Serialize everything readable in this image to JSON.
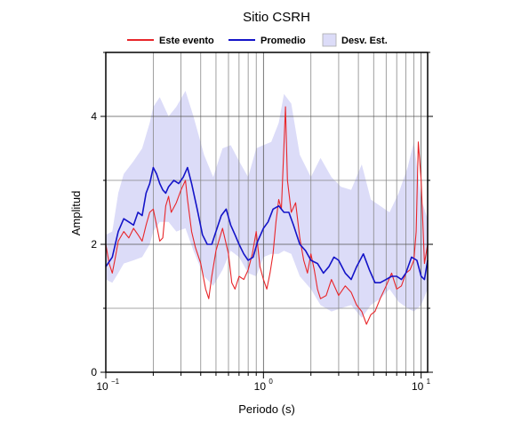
{
  "chart_data": {
    "type": "line",
    "title": "Sitio CSRH",
    "xlabel": "Periodo (s)",
    "ylabel": "Amplitud",
    "x_scale": "log",
    "xlim": [
      0.1,
      11
    ],
    "ylim": [
      0,
      5
    ],
    "x_ticks": [
      {
        "value": 0.1,
        "base": "10",
        "exp": "−1"
      },
      {
        "value": 1,
        "base": "10",
        "exp": "0"
      },
      {
        "value": 10,
        "base": "10",
        "exp": "1"
      }
    ],
    "y_ticks": [
      0,
      2,
      4
    ],
    "grid": true,
    "legend": {
      "position": "top",
      "items": [
        {
          "label": "Este evento",
          "kind": "line",
          "color": "#e8262a"
        },
        {
          "label": "Promedio",
          "kind": "line",
          "color": "#1414c8"
        },
        {
          "label": "Desv. Est.",
          "kind": "band",
          "color": "#dcdcf8"
        }
      ]
    },
    "band": {
      "name": "Desv. Est.",
      "color": "#dcdcf8",
      "x": [
        0.1,
        0.11,
        0.12,
        0.13,
        0.15,
        0.17,
        0.19,
        0.2,
        0.22,
        0.25,
        0.28,
        0.32,
        0.36,
        0.42,
        0.48,
        0.55,
        0.62,
        0.7,
        0.8,
        0.9,
        1.0,
        1.12,
        1.25,
        1.35,
        1.5,
        1.7,
        2.0,
        2.3,
        2.7,
        3.1,
        3.6,
        4.2,
        4.8,
        5.5,
        6.3,
        7.2,
        8.2,
        9.0,
        10.0,
        11.0
      ],
      "upper": [
        2.15,
        2.2,
        2.8,
        3.1,
        3.3,
        3.5,
        3.9,
        4.15,
        4.3,
        4.0,
        4.15,
        4.4,
        4.0,
        3.4,
        3.05,
        3.5,
        3.55,
        3.3,
        3.05,
        3.5,
        3.55,
        3.6,
        3.9,
        4.35,
        4.2,
        3.4,
        3.05,
        3.35,
        3.05,
        2.9,
        2.85,
        3.25,
        2.7,
        2.6,
        2.5,
        2.8,
        3.2,
        3.6,
        2.7,
        2.4
      ],
      "lower": [
        1.45,
        1.4,
        1.55,
        1.7,
        1.75,
        1.8,
        2.0,
        2.2,
        2.35,
        2.35,
        2.2,
        2.25,
        1.9,
        1.5,
        1.35,
        1.6,
        1.9,
        1.8,
        1.55,
        1.5,
        1.8,
        1.85,
        1.85,
        1.9,
        1.85,
        1.5,
        1.3,
        1.05,
        0.95,
        1.0,
        1.05,
        0.85,
        1.05,
        1.15,
        1.3,
        1.1,
        1.0,
        0.95,
        1.05,
        1.3
      ]
    },
    "series": [
      {
        "name": "Este evento",
        "color": "#e8262a",
        "x": [
          0.1,
          0.105,
          0.11,
          0.115,
          0.12,
          0.13,
          0.14,
          0.15,
          0.16,
          0.17,
          0.18,
          0.19,
          0.2,
          0.21,
          0.22,
          0.23,
          0.24,
          0.25,
          0.26,
          0.28,
          0.3,
          0.32,
          0.33,
          0.35,
          0.37,
          0.4,
          0.43,
          0.45,
          0.47,
          0.5,
          0.55,
          0.6,
          0.63,
          0.66,
          0.7,
          0.75,
          0.8,
          0.85,
          0.9,
          0.95,
          1.0,
          1.05,
          1.1,
          1.15,
          1.2,
          1.25,
          1.3,
          1.35,
          1.38,
          1.42,
          1.5,
          1.6,
          1.7,
          1.8,
          1.9,
          2.0,
          2.1,
          2.2,
          2.3,
          2.5,
          2.7,
          3.0,
          3.3,
          3.6,
          3.9,
          4.2,
          4.5,
          4.8,
          5.1,
          5.5,
          6.0,
          6.5,
          7.0,
          7.5,
          8.0,
          8.5,
          9.0,
          9.3,
          9.6,
          10.0,
          10.5,
          11.0
        ],
        "values": [
          2.0,
          1.7,
          1.55,
          1.8,
          2.05,
          2.2,
          2.1,
          2.25,
          2.15,
          2.05,
          2.3,
          2.5,
          2.55,
          2.3,
          2.05,
          2.1,
          2.6,
          2.75,
          2.5,
          2.65,
          2.85,
          3.0,
          2.7,
          2.2,
          1.95,
          1.7,
          1.3,
          1.15,
          1.5,
          1.9,
          2.25,
          1.85,
          1.4,
          1.3,
          1.5,
          1.45,
          1.6,
          1.85,
          2.2,
          1.65,
          1.45,
          1.3,
          1.55,
          1.85,
          2.35,
          2.7,
          2.55,
          3.55,
          4.15,
          3.0,
          2.5,
          2.65,
          2.1,
          1.75,
          1.55,
          1.85,
          1.6,
          1.3,
          1.15,
          1.2,
          1.45,
          1.2,
          1.35,
          1.25,
          1.05,
          0.95,
          0.75,
          0.9,
          0.95,
          1.15,
          1.35,
          1.55,
          1.3,
          1.35,
          1.55,
          1.6,
          1.75,
          2.2,
          3.6,
          3.0,
          1.7,
          2.0
        ]
      },
      {
        "name": "Promedio",
        "color": "#1414c8",
        "x": [
          0.1,
          0.11,
          0.12,
          0.13,
          0.14,
          0.15,
          0.16,
          0.17,
          0.18,
          0.19,
          0.2,
          0.21,
          0.22,
          0.23,
          0.24,
          0.25,
          0.27,
          0.29,
          0.31,
          0.33,
          0.35,
          0.38,
          0.41,
          0.44,
          0.47,
          0.5,
          0.54,
          0.58,
          0.62,
          0.66,
          0.7,
          0.75,
          0.8,
          0.86,
          0.92,
          1.0,
          1.07,
          1.15,
          1.25,
          1.35,
          1.45,
          1.55,
          1.7,
          1.85,
          2.0,
          2.2,
          2.4,
          2.6,
          2.8,
          3.0,
          3.3,
          3.6,
          3.9,
          4.3,
          4.7,
          5.1,
          5.5,
          6.0,
          6.5,
          7.0,
          7.5,
          8.0,
          8.7,
          9.4,
          10.0,
          10.5,
          11.0
        ],
        "values": [
          1.65,
          1.8,
          2.2,
          2.4,
          2.35,
          2.3,
          2.5,
          2.45,
          2.8,
          2.95,
          3.2,
          3.1,
          2.95,
          2.85,
          2.8,
          2.9,
          3.0,
          2.95,
          3.05,
          3.2,
          2.95,
          2.55,
          2.15,
          2.0,
          2.0,
          2.2,
          2.45,
          2.55,
          2.3,
          2.15,
          2.0,
          1.85,
          1.75,
          1.8,
          2.05,
          2.25,
          2.35,
          2.55,
          2.6,
          2.5,
          2.5,
          2.3,
          2.0,
          1.9,
          1.75,
          1.7,
          1.55,
          1.65,
          1.8,
          1.75,
          1.55,
          1.45,
          1.65,
          1.85,
          1.6,
          1.4,
          1.4,
          1.45,
          1.5,
          1.5,
          1.45,
          1.55,
          1.8,
          1.75,
          1.5,
          1.45,
          1.75
        ]
      }
    ]
  }
}
